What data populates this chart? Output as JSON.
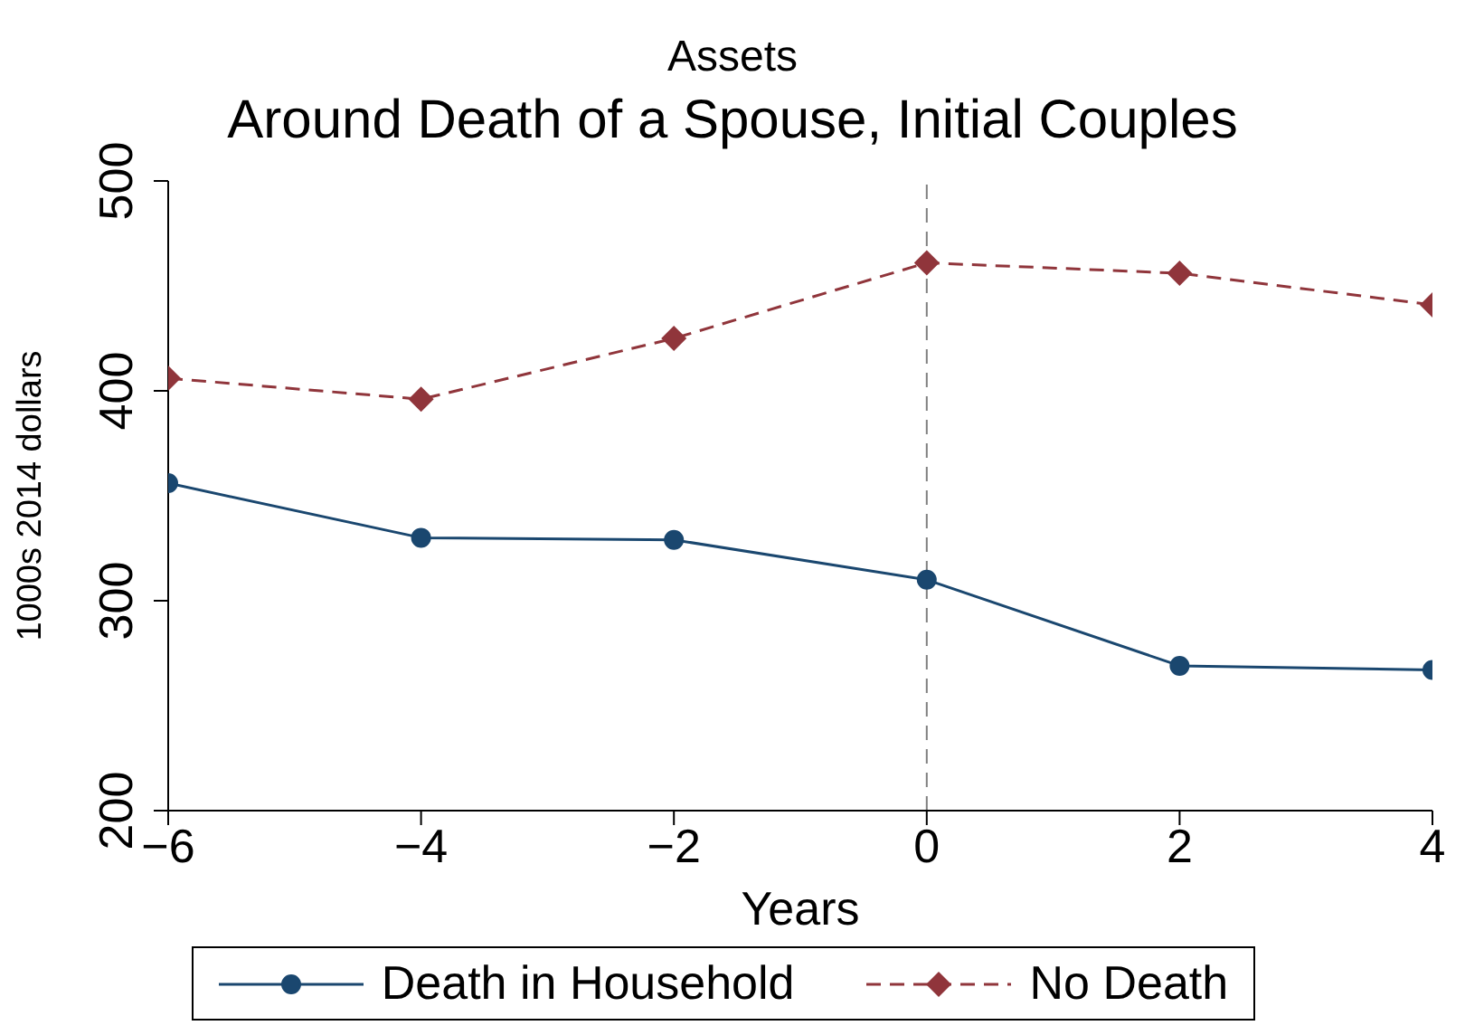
{
  "chart_data": {
    "type": "line",
    "title": "Assets",
    "subtitle": "Around Death of a Spouse, Initial Couples",
    "xlabel": "Years",
    "ylabel": "1000s 2014 dollars",
    "x": [
      -6,
      -4,
      -2,
      0,
      2,
      4
    ],
    "series": [
      {
        "name": "Death in Household",
        "color": "#1a476f",
        "marker": "circle",
        "line_style": "solid",
        "values": [
          356,
          330,
          329,
          310,
          269,
          267
        ]
      },
      {
        "name": "No Death",
        "color": "#90353b",
        "marker": "diamond",
        "line_style": "dashed",
        "values": [
          406,
          396,
          425,
          461,
          456,
          441
        ]
      }
    ],
    "xlim": [
      -6,
      4
    ],
    "xticks": [
      -6,
      -4,
      -2,
      0,
      2,
      4
    ],
    "ylim": [
      200,
      500
    ],
    "yticks": [
      200,
      300,
      400,
      500
    ],
    "ref_lines": [
      {
        "axis": "x",
        "value": 0,
        "color": "#7f7f7f",
        "line_style": "dashed"
      }
    ],
    "grid": false,
    "legend": "bottom"
  }
}
